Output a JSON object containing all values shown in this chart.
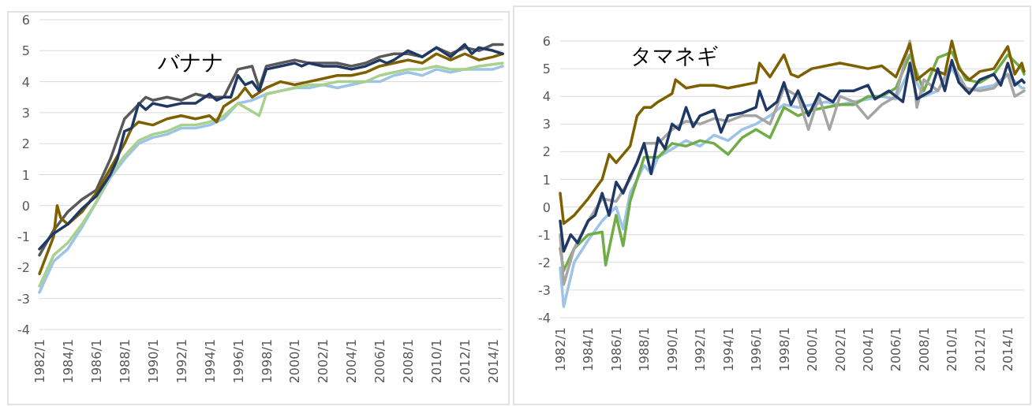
{
  "chart_data": [
    {
      "type": "line",
      "title": "バナナ",
      "xlim": [
        "1982-01",
        "2014-09"
      ],
      "ylim": [
        -4,
        6
      ],
      "yticks": [
        -4,
        -3,
        -2,
        -1,
        0,
        1,
        2,
        3,
        4,
        5,
        6
      ],
      "grid": "y",
      "xticks": [
        {
          "value": "1982-01",
          "label": "1982/1"
        },
        {
          "value": "1984-01",
          "label": "1984/1"
        },
        {
          "value": "1986-01",
          "label": "1986/1"
        },
        {
          "value": "1988-01",
          "label": "1988/1"
        },
        {
          "value": "1990-01",
          "label": "1990/1"
        },
        {
          "value": "1992-01",
          "label": "1992/1"
        },
        {
          "value": "1994-01",
          "label": "1994/1"
        },
        {
          "value": "1996-01",
          "label": "1996/1"
        },
        {
          "value": "1998-01",
          "label": "1998/1"
        },
        {
          "value": "2000-01",
          "label": "2000/1"
        },
        {
          "value": "2002-01",
          "label": "2002/1"
        },
        {
          "value": "2004-01",
          "label": "2004/1"
        },
        {
          "value": "2006-01",
          "label": "2006/1"
        },
        {
          "value": "2008-01",
          "label": "2008/1"
        },
        {
          "value": "2010-01",
          "label": "2010/1"
        },
        {
          "value": "2012-01",
          "label": "2012/1"
        },
        {
          "value": "2014-01",
          "label": "2014/1"
        }
      ],
      "series": [
        {
          "color": "#9dc3e6",
          "x": [
            "1982-01",
            "1983-01",
            "1984-01",
            "1985-01",
            "1986-01",
            "1987-01",
            "1988-01",
            "1989-01",
            "1990-01",
            "1991-01",
            "1992-01",
            "1993-01",
            "1994-01",
            "1995-01",
            "1996-01",
            "1997-01",
            "1998-01",
            "1999-01",
            "2000-01",
            "2001-01",
            "2002-01",
            "2003-01",
            "2004-01",
            "2005-01",
            "2006-01",
            "2007-01",
            "2008-01",
            "2009-01",
            "2010-01",
            "2011-01",
            "2012-01",
            "2013-01",
            "2014-01",
            "2014-09"
          ],
          "values": [
            -2.8,
            -1.8,
            -1.4,
            -0.7,
            0.1,
            0.9,
            1.5,
            2.0,
            2.2,
            2.3,
            2.5,
            2.5,
            2.6,
            2.8,
            3.3,
            3.4,
            3.6,
            3.7,
            3.8,
            3.8,
            3.9,
            3.8,
            3.9,
            4.0,
            4.0,
            4.2,
            4.3,
            4.2,
            4.4,
            4.3,
            4.4,
            4.4,
            4.4,
            4.5
          ]
        },
        {
          "color": "#a9d18e",
          "x": [
            "1982-01",
            "1983-01",
            "1984-01",
            "1985-01",
            "1986-01",
            "1987-01",
            "1988-01",
            "1989-01",
            "1990-01",
            "1991-01",
            "1992-01",
            "1993-01",
            "1994-01",
            "1995-01",
            "1996-01",
            "1997-07",
            "1998-01",
            "1999-01",
            "2000-01",
            "2001-01",
            "2002-01",
            "2003-01",
            "2004-01",
            "2005-01",
            "2006-01",
            "2007-01",
            "2008-01",
            "2009-01",
            "2010-01",
            "2011-01",
            "2012-01",
            "2013-01",
            "2014-09"
          ],
          "values": [
            -2.6,
            -1.6,
            -1.2,
            -0.6,
            0.1,
            1.0,
            1.6,
            2.1,
            2.3,
            2.4,
            2.6,
            2.6,
            2.7,
            2.9,
            3.3,
            2.9,
            3.6,
            3.7,
            3.8,
            3.9,
            3.9,
            4.0,
            4.0,
            4.0,
            4.2,
            4.3,
            4.4,
            4.4,
            4.5,
            4.4,
            4.4,
            4.5,
            4.6
          ]
        },
        {
          "color": "#595959",
          "x": [
            "1982-01",
            "1983-01",
            "1984-01",
            "1985-01",
            "1986-01",
            "1987-01",
            "1988-01",
            "1989-07",
            "1990-01",
            "1991-01",
            "1992-01",
            "1993-01",
            "1994-01",
            "1995-01",
            "1996-01",
            "1997-01",
            "1997-07",
            "1998-01",
            "1999-01",
            "2000-01",
            "2001-01",
            "2003-01",
            "2004-01",
            "2005-01",
            "2006-01",
            "2007-01",
            "2008-01",
            "2009-01",
            "2010-01",
            "2011-01",
            "2012-01",
            "2013-01",
            "2014-01",
            "2014-09"
          ],
          "values": [
            -1.6,
            -0.8,
            -0.2,
            0.2,
            0.5,
            1.5,
            2.8,
            3.5,
            3.4,
            3.5,
            3.4,
            3.6,
            3.5,
            3.5,
            4.4,
            4.5,
            3.8,
            4.5,
            4.6,
            4.7,
            4.6,
            4.6,
            4.5,
            4.6,
            4.8,
            4.9,
            4.9,
            4.8,
            5.1,
            4.9,
            5.1,
            5.0,
            5.2,
            5.2
          ]
        },
        {
          "color": "#7f6000",
          "x": [
            "1982-01",
            "1983-01",
            "1983-04",
            "1983-07",
            "1984-01",
            "1985-01",
            "1986-01",
            "1987-01",
            "1988-01",
            "1988-07",
            "1989-01",
            "1990-01",
            "1991-01",
            "1992-01",
            "1993-01",
            "1994-01",
            "1994-07",
            "1995-01",
            "1996-01",
            "1996-07",
            "1997-01",
            "1998-01",
            "1999-01",
            "2000-01",
            "2001-01",
            "2002-01",
            "2003-01",
            "2004-01",
            "2005-01",
            "2006-01",
            "2007-01",
            "2008-01",
            "2009-01",
            "2010-01",
            "2011-01",
            "2012-01",
            "2013-01",
            "2014-01",
            "2014-09"
          ],
          "values": [
            -2.2,
            -1.0,
            0.0,
            -0.4,
            -0.6,
            -0.2,
            0.4,
            1.2,
            2.0,
            2.5,
            2.7,
            2.6,
            2.8,
            2.9,
            2.8,
            2.9,
            2.7,
            3.2,
            3.5,
            3.8,
            3.5,
            3.8,
            4.0,
            3.9,
            4.0,
            4.1,
            4.2,
            4.2,
            4.3,
            4.5,
            4.6,
            4.7,
            4.6,
            4.9,
            4.7,
            4.9,
            4.7,
            4.8,
            4.9
          ]
        },
        {
          "color": "#1f3864",
          "x": [
            "1982-01",
            "1983-01",
            "1984-01",
            "1985-01",
            "1986-01",
            "1987-01",
            "1987-07",
            "1988-01",
            "1988-07",
            "1989-01",
            "1989-07",
            "1990-01",
            "1991-01",
            "1992-01",
            "1993-01",
            "1994-01",
            "1994-07",
            "1995-01",
            "1995-07",
            "1996-01",
            "1996-07",
            "1997-01",
            "1997-07",
            "1998-01",
            "1999-01",
            "2000-01",
            "2000-07",
            "2001-01",
            "2002-01",
            "2003-01",
            "2004-01",
            "2005-01",
            "2006-01",
            "2006-07",
            "2007-01",
            "2008-01",
            "2009-01",
            "2010-01",
            "2011-01",
            "2012-01",
            "2012-07",
            "2013-01",
            "2014-01",
            "2014-09"
          ],
          "values": [
            -1.4,
            -0.9,
            -0.6,
            -0.1,
            0.3,
            1.0,
            1.5,
            2.4,
            2.5,
            3.3,
            3.1,
            3.3,
            3.2,
            3.3,
            3.3,
            3.6,
            3.4,
            3.5,
            3.5,
            4.2,
            3.9,
            4.0,
            3.7,
            4.4,
            4.5,
            4.6,
            4.5,
            4.6,
            4.5,
            4.5,
            4.4,
            4.5,
            4.7,
            4.6,
            4.7,
            5.0,
            4.8,
            5.1,
            4.8,
            5.2,
            4.9,
            5.1,
            5.0,
            4.9
          ]
        }
      ]
    },
    {
      "type": "line",
      "title": "タマネギ",
      "xlim": [
        "1982-01",
        "2015-03"
      ],
      "ylim": [
        -4,
        6
      ],
      "yticks": [
        -4,
        -3,
        -2,
        -1,
        0,
        1,
        2,
        3,
        4,
        5,
        6
      ],
      "grid": "y",
      "xticks": [
        {
          "value": "1982-01",
          "label": "1982/1"
        },
        {
          "value": "1984-01",
          "label": "1984/1"
        },
        {
          "value": "1986-01",
          "label": "1986/1"
        },
        {
          "value": "1988-01",
          "label": "1988/1"
        },
        {
          "value": "1990-01",
          "label": "1990/1"
        },
        {
          "value": "1992-01",
          "label": "1992/1"
        },
        {
          "value": "1994-01",
          "label": "1994/1"
        },
        {
          "value": "1996-01",
          "label": "1996/1"
        },
        {
          "value": "1998-01",
          "label": "1998/1"
        },
        {
          "value": "2000-01",
          "label": "2000/1"
        },
        {
          "value": "2002-01",
          "label": "2002/1"
        },
        {
          "value": "2004-01",
          "label": "2004/1"
        },
        {
          "value": "2006-01",
          "label": "2006/1"
        },
        {
          "value": "2008-01",
          "label": "2008/1"
        },
        {
          "value": "2010-01",
          "label": "2010/1"
        },
        {
          "value": "2012-01",
          "label": "2012/1"
        },
        {
          "value": "2014-01",
          "label": "2014/1"
        }
      ],
      "series": [
        {
          "color": "#9dc3e6",
          "x": [
            "1982-01",
            "1982-04",
            "1983-01",
            "1984-01",
            "1985-01",
            "1986-01",
            "1986-07",
            "1987-01",
            "1988-01",
            "1988-07",
            "1989-01",
            "1990-01",
            "1991-01",
            "1992-01",
            "1993-01",
            "1994-01",
            "1995-01",
            "1996-01",
            "1997-01",
            "1998-01",
            "1999-01",
            "2000-01",
            "2001-01",
            "2002-01",
            "2003-01",
            "2004-01",
            "2005-01",
            "2006-01",
            "2007-01",
            "2008-01",
            "2009-01",
            "2010-01",
            "2011-01",
            "2012-01",
            "2013-01",
            "2014-01",
            "2015-01",
            "2015-03"
          ],
          "values": [
            -2.2,
            -3.6,
            -2.0,
            -1.2,
            -0.5,
            0.0,
            -0.8,
            0.5,
            1.5,
            1.2,
            1.8,
            2.1,
            2.4,
            2.2,
            2.6,
            2.4,
            2.8,
            3.0,
            3.3,
            3.7,
            3.6,
            3.7,
            3.8,
            3.7,
            3.8,
            3.9,
            4.0,
            3.9,
            5.0,
            4.0,
            4.2,
            5.0,
            4.2,
            4.3,
            4.4,
            4.8,
            4.3,
            4.3
          ]
        },
        {
          "color": "#70ad47",
          "x": [
            "1982-01",
            "1982-04",
            "1983-01",
            "1984-01",
            "1985-01",
            "1985-04",
            "1986-01",
            "1986-07",
            "1987-01",
            "1988-01",
            "1989-01",
            "1990-01",
            "1991-01",
            "1992-01",
            "1993-01",
            "1994-01",
            "1995-01",
            "1996-01",
            "1997-01",
            "1998-01",
            "1999-01",
            "2000-01",
            "2001-01",
            "2002-01",
            "2003-01",
            "2004-01",
            "2005-01",
            "2006-01",
            "2007-01",
            "2008-01",
            "2009-01",
            "2010-01",
            "2011-01",
            "2012-01",
            "2013-01",
            "2014-01",
            "2015-01",
            "2015-03"
          ],
          "values": [
            -1.5,
            -2.3,
            -1.5,
            -1.0,
            -0.9,
            -2.1,
            -0.3,
            -1.4,
            0.2,
            1.8,
            1.8,
            2.3,
            2.2,
            2.4,
            2.3,
            1.9,
            2.5,
            2.8,
            2.5,
            3.6,
            3.3,
            3.5,
            3.6,
            3.7,
            3.7,
            4.0,
            4.0,
            4.3,
            5.5,
            4.2,
            5.4,
            5.6,
            4.6,
            4.5,
            4.8,
            5.5,
            5.0,
            4.8
          ]
        },
        {
          "color": "#a5a5a5",
          "x": [
            "1982-01",
            "1982-04",
            "1983-01",
            "1984-01",
            "1985-01",
            "1986-01",
            "1987-01",
            "1988-01",
            "1989-01",
            "1990-01",
            "1991-01",
            "1992-01",
            "1993-01",
            "1994-01",
            "1995-01",
            "1996-01",
            "1997-01",
            "1998-01",
            "1999-01",
            "1999-10",
            "2000-07",
            "2001-04",
            "2002-01",
            "2003-01",
            "2004-01",
            "2005-01",
            "2006-01",
            "2007-01",
            "2007-07",
            "2008-01",
            "2009-01",
            "2010-01",
            "2011-01",
            "2012-01",
            "2013-01",
            "2014-01",
            "2014-07",
            "2015-03"
          ],
          "values": [
            -1.0,
            -2.8,
            -1.5,
            -0.5,
            0.3,
            0.2,
            1.0,
            2.3,
            2.3,
            2.8,
            3.1,
            3.0,
            3.2,
            3.1,
            3.3,
            3.3,
            3.0,
            4.3,
            4.0,
            2.8,
            4.0,
            2.8,
            4.0,
            3.8,
            3.2,
            3.7,
            4.0,
            6.0,
            3.6,
            4.6,
            4.2,
            5.2,
            4.3,
            4.2,
            4.3,
            4.8,
            4.0,
            4.2
          ]
        },
        {
          "color": "#7f6000",
          "x": [
            "1982-01",
            "1982-04",
            "1983-01",
            "1984-01",
            "1985-01",
            "1985-07",
            "1986-01",
            "1987-01",
            "1987-07",
            "1988-01",
            "1988-07",
            "1989-01",
            "1990-01",
            "1990-04",
            "1991-01",
            "1992-01",
            "1993-01",
            "1994-01",
            "1995-01",
            "1996-01",
            "1996-04",
            "1997-01",
            "1998-01",
            "1998-07",
            "1999-01",
            "2000-01",
            "2001-01",
            "2002-01",
            "2003-01",
            "2004-01",
            "2005-01",
            "2006-01",
            "2007-01",
            "2007-07",
            "2008-07",
            "2009-07",
            "2010-01",
            "2010-07",
            "2011-04",
            "2012-01",
            "2013-01",
            "2014-01",
            "2014-07",
            "2015-01",
            "2015-03"
          ],
          "values": [
            0.5,
            -0.6,
            -0.3,
            0.3,
            1.0,
            1.9,
            1.6,
            2.2,
            3.3,
            3.6,
            3.6,
            3.8,
            4.1,
            4.6,
            4.3,
            4.4,
            4.4,
            4.3,
            4.4,
            4.5,
            5.2,
            4.7,
            5.5,
            4.8,
            4.7,
            5.0,
            5.1,
            5.2,
            5.1,
            5.0,
            5.1,
            4.7,
            5.9,
            4.6,
            5.0,
            4.8,
            6.0,
            5.0,
            4.6,
            4.9,
            5.0,
            5.8,
            4.8,
            5.2,
            4.9
          ]
        },
        {
          "color": "#1f3864",
          "x": [
            "1982-01",
            "1982-04",
            "1982-10",
            "1983-04",
            "1984-01",
            "1984-07",
            "1985-01",
            "1985-07",
            "1986-01",
            "1986-07",
            "1987-01",
            "1987-07",
            "1988-01",
            "1988-07",
            "1989-01",
            "1989-07",
            "1990-01",
            "1990-07",
            "1991-01",
            "1991-07",
            "1992-01",
            "1993-01",
            "1993-07",
            "1994-01",
            "1995-01",
            "1996-01",
            "1996-04",
            "1996-10",
            "1997-07",
            "1998-01",
            "1998-07",
            "1999-01",
            "1999-10",
            "2000-07",
            "2001-07",
            "2002-01",
            "2003-01",
            "2004-01",
            "2004-07",
            "2005-07",
            "2006-07",
            "2007-01",
            "2007-07",
            "2008-07",
            "2009-01",
            "2009-07",
            "2010-01",
            "2010-07",
            "2011-04",
            "2012-01",
            "2013-01",
            "2013-07",
            "2014-01",
            "2014-07",
            "2015-01",
            "2015-03"
          ],
          "values": [
            -0.5,
            -1.6,
            -1.0,
            -1.3,
            -0.5,
            -0.3,
            0.5,
            -0.3,
            0.9,
            0.5,
            1.1,
            1.6,
            2.3,
            1.2,
            2.5,
            2.1,
            3.0,
            2.8,
            3.6,
            2.9,
            3.3,
            3.5,
            2.7,
            3.3,
            3.4,
            3.6,
            4.2,
            3.5,
            3.8,
            4.5,
            3.7,
            4.2,
            3.3,
            4.1,
            3.8,
            4.2,
            4.2,
            4.4,
            3.9,
            4.2,
            3.8,
            5.2,
            3.9,
            4.2,
            5.0,
            4.2,
            5.3,
            4.5,
            4.1,
            4.6,
            4.8,
            4.4,
            5.2,
            4.4,
            4.6,
            4.5
          ]
        }
      ]
    }
  ]
}
